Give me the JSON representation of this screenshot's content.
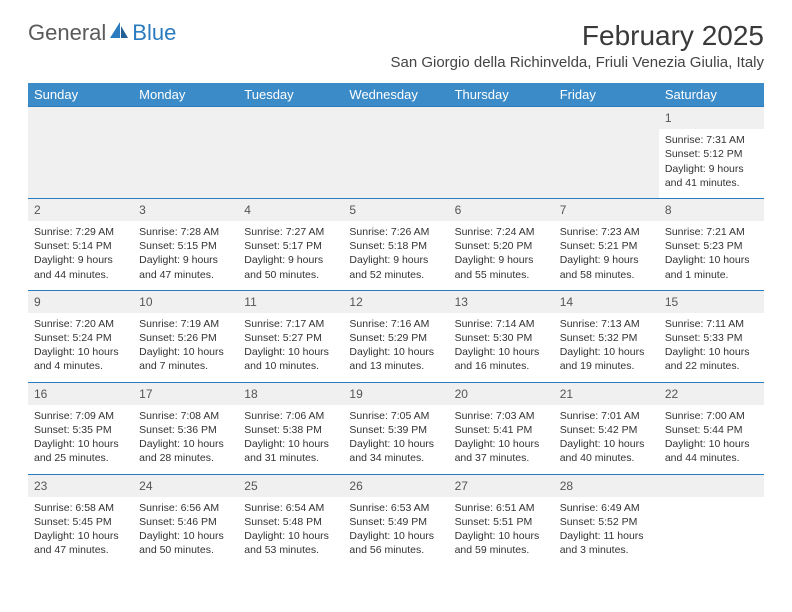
{
  "brand": {
    "part1": "General",
    "part2": "Blue"
  },
  "title": "February 2025",
  "location": "San Giorgio della Richinvelda, Friuli Venezia Giulia, Italy",
  "colors": {
    "header_bg": "#3b8bc9",
    "header_text": "#ffffff",
    "rule": "#2b7bbf",
    "numrow_bg": "#f0f0f0",
    "text": "#333333"
  },
  "typography": {
    "month_title_size": 28,
    "location_size": 15,
    "dayhead_size": 13,
    "daynum_size": 12,
    "cell_size": 10.5
  },
  "day_headers": [
    "Sunday",
    "Monday",
    "Tuesday",
    "Wednesday",
    "Thursday",
    "Friday",
    "Saturday"
  ],
  "weeks": [
    {
      "nums": [
        "",
        "",
        "",
        "",
        "",
        "",
        "1"
      ],
      "cells": [
        null,
        null,
        null,
        null,
        null,
        null,
        {
          "sr": "Sunrise: 7:31 AM",
          "ss": "Sunset: 5:12 PM",
          "d1": "Daylight: 9 hours",
          "d2": "and 41 minutes."
        }
      ]
    },
    {
      "nums": [
        "2",
        "3",
        "4",
        "5",
        "6",
        "7",
        "8"
      ],
      "cells": [
        {
          "sr": "Sunrise: 7:29 AM",
          "ss": "Sunset: 5:14 PM",
          "d1": "Daylight: 9 hours",
          "d2": "and 44 minutes."
        },
        {
          "sr": "Sunrise: 7:28 AM",
          "ss": "Sunset: 5:15 PM",
          "d1": "Daylight: 9 hours",
          "d2": "and 47 minutes."
        },
        {
          "sr": "Sunrise: 7:27 AM",
          "ss": "Sunset: 5:17 PM",
          "d1": "Daylight: 9 hours",
          "d2": "and 50 minutes."
        },
        {
          "sr": "Sunrise: 7:26 AM",
          "ss": "Sunset: 5:18 PM",
          "d1": "Daylight: 9 hours",
          "d2": "and 52 minutes."
        },
        {
          "sr": "Sunrise: 7:24 AM",
          "ss": "Sunset: 5:20 PM",
          "d1": "Daylight: 9 hours",
          "d2": "and 55 minutes."
        },
        {
          "sr": "Sunrise: 7:23 AM",
          "ss": "Sunset: 5:21 PM",
          "d1": "Daylight: 9 hours",
          "d2": "and 58 minutes."
        },
        {
          "sr": "Sunrise: 7:21 AM",
          "ss": "Sunset: 5:23 PM",
          "d1": "Daylight: 10 hours",
          "d2": "and 1 minute."
        }
      ]
    },
    {
      "nums": [
        "9",
        "10",
        "11",
        "12",
        "13",
        "14",
        "15"
      ],
      "cells": [
        {
          "sr": "Sunrise: 7:20 AM",
          "ss": "Sunset: 5:24 PM",
          "d1": "Daylight: 10 hours",
          "d2": "and 4 minutes."
        },
        {
          "sr": "Sunrise: 7:19 AM",
          "ss": "Sunset: 5:26 PM",
          "d1": "Daylight: 10 hours",
          "d2": "and 7 minutes."
        },
        {
          "sr": "Sunrise: 7:17 AM",
          "ss": "Sunset: 5:27 PM",
          "d1": "Daylight: 10 hours",
          "d2": "and 10 minutes."
        },
        {
          "sr": "Sunrise: 7:16 AM",
          "ss": "Sunset: 5:29 PM",
          "d1": "Daylight: 10 hours",
          "d2": "and 13 minutes."
        },
        {
          "sr": "Sunrise: 7:14 AM",
          "ss": "Sunset: 5:30 PM",
          "d1": "Daylight: 10 hours",
          "d2": "and 16 minutes."
        },
        {
          "sr": "Sunrise: 7:13 AM",
          "ss": "Sunset: 5:32 PM",
          "d1": "Daylight: 10 hours",
          "d2": "and 19 minutes."
        },
        {
          "sr": "Sunrise: 7:11 AM",
          "ss": "Sunset: 5:33 PM",
          "d1": "Daylight: 10 hours",
          "d2": "and 22 minutes."
        }
      ]
    },
    {
      "nums": [
        "16",
        "17",
        "18",
        "19",
        "20",
        "21",
        "22"
      ],
      "cells": [
        {
          "sr": "Sunrise: 7:09 AM",
          "ss": "Sunset: 5:35 PM",
          "d1": "Daylight: 10 hours",
          "d2": "and 25 minutes."
        },
        {
          "sr": "Sunrise: 7:08 AM",
          "ss": "Sunset: 5:36 PM",
          "d1": "Daylight: 10 hours",
          "d2": "and 28 minutes."
        },
        {
          "sr": "Sunrise: 7:06 AM",
          "ss": "Sunset: 5:38 PM",
          "d1": "Daylight: 10 hours",
          "d2": "and 31 minutes."
        },
        {
          "sr": "Sunrise: 7:05 AM",
          "ss": "Sunset: 5:39 PM",
          "d1": "Daylight: 10 hours",
          "d2": "and 34 minutes."
        },
        {
          "sr": "Sunrise: 7:03 AM",
          "ss": "Sunset: 5:41 PM",
          "d1": "Daylight: 10 hours",
          "d2": "and 37 minutes."
        },
        {
          "sr": "Sunrise: 7:01 AM",
          "ss": "Sunset: 5:42 PM",
          "d1": "Daylight: 10 hours",
          "d2": "and 40 minutes."
        },
        {
          "sr": "Sunrise: 7:00 AM",
          "ss": "Sunset: 5:44 PM",
          "d1": "Daylight: 10 hours",
          "d2": "and 44 minutes."
        }
      ]
    },
    {
      "nums": [
        "23",
        "24",
        "25",
        "26",
        "27",
        "28",
        ""
      ],
      "cells": [
        {
          "sr": "Sunrise: 6:58 AM",
          "ss": "Sunset: 5:45 PM",
          "d1": "Daylight: 10 hours",
          "d2": "and 47 minutes."
        },
        {
          "sr": "Sunrise: 6:56 AM",
          "ss": "Sunset: 5:46 PM",
          "d1": "Daylight: 10 hours",
          "d2": "and 50 minutes."
        },
        {
          "sr": "Sunrise: 6:54 AM",
          "ss": "Sunset: 5:48 PM",
          "d1": "Daylight: 10 hours",
          "d2": "and 53 minutes."
        },
        {
          "sr": "Sunrise: 6:53 AM",
          "ss": "Sunset: 5:49 PM",
          "d1": "Daylight: 10 hours",
          "d2": "and 56 minutes."
        },
        {
          "sr": "Sunrise: 6:51 AM",
          "ss": "Sunset: 5:51 PM",
          "d1": "Daylight: 10 hours",
          "d2": "and 59 minutes."
        },
        {
          "sr": "Sunrise: 6:49 AM",
          "ss": "Sunset: 5:52 PM",
          "d1": "Daylight: 11 hours",
          "d2": "and 3 minutes."
        },
        null
      ]
    }
  ]
}
